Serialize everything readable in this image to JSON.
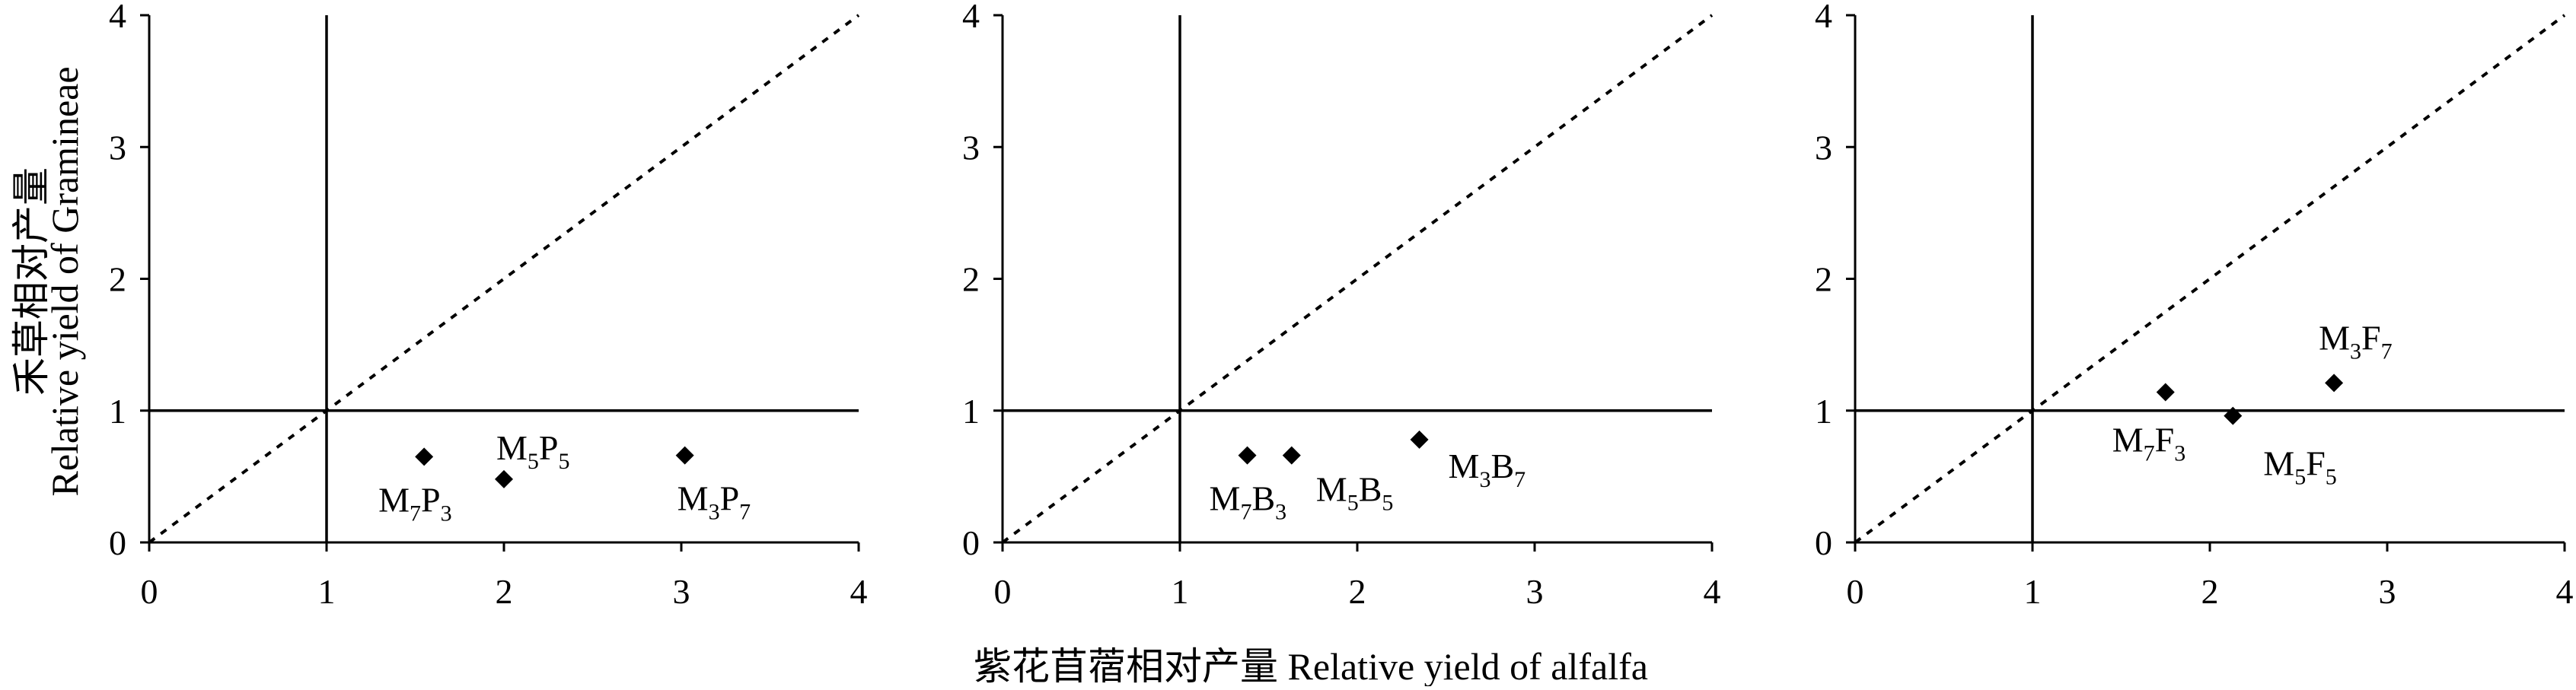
{
  "figure": {
    "x_axis_label": "紫花苜蓿相对产量 Relative yield of alfalfa",
    "y_axis_label_cn": "禾草相对产量",
    "y_axis_label_en": "Relative yield of Gramineae"
  },
  "chart_data": [
    {
      "type": "scatter",
      "title": "",
      "xlim": [
        0,
        4
      ],
      "ylim": [
        0,
        4
      ],
      "xticks": [
        "0",
        "1",
        "2",
        "3",
        "4"
      ],
      "yticks": [
        "0",
        "1",
        "2",
        "3",
        "4"
      ],
      "reference_lines": {
        "vertical_x": 1,
        "horizontal_y": 1,
        "diagonal": "y = x (dotted)"
      },
      "marker": "diamond",
      "marker_color": "#000000",
      "points": [
        {
          "x": 1.55,
          "y": 0.65,
          "label_main": [
            "M",
            "P"
          ],
          "label_sub": [
            "7",
            "3"
          ]
        },
        {
          "x": 2.0,
          "y": 0.48,
          "label_main": [
            "M",
            "P"
          ],
          "label_sub": [
            "5",
            "5"
          ]
        },
        {
          "x": 3.02,
          "y": 0.66,
          "label_main": [
            "M",
            "P"
          ],
          "label_sub": [
            "3",
            "7"
          ]
        }
      ]
    },
    {
      "type": "scatter",
      "title": "",
      "xlim": [
        0,
        4
      ],
      "ylim": [
        0,
        4
      ],
      "xticks": [
        "0",
        "1",
        "2",
        "3",
        "4"
      ],
      "yticks": [
        "0",
        "1",
        "2",
        "3",
        "4"
      ],
      "reference_lines": {
        "vertical_x": 1,
        "horizontal_y": 1,
        "diagonal": "y = x (dotted)"
      },
      "marker": "diamond",
      "marker_color": "#000000",
      "points": [
        {
          "x": 1.38,
          "y": 0.66,
          "label_main": [
            "M",
            "B"
          ],
          "label_sub": [
            "7",
            "3"
          ]
        },
        {
          "x": 1.63,
          "y": 0.66,
          "label_main": [
            "M",
            "B"
          ],
          "label_sub": [
            "5",
            "5"
          ]
        },
        {
          "x": 2.35,
          "y": 0.78,
          "label_main": [
            "M",
            "B"
          ],
          "label_sub": [
            "3",
            "7"
          ]
        }
      ]
    },
    {
      "type": "scatter",
      "title": "",
      "xlim": [
        0,
        4
      ],
      "ylim": [
        0,
        4
      ],
      "xticks": [
        "0",
        "1",
        "2",
        "3",
        "4"
      ],
      "yticks": [
        "0",
        "1",
        "2",
        "3",
        "4"
      ],
      "reference_lines": {
        "vertical_x": 1,
        "horizontal_y": 1,
        "diagonal": "y = x (dotted)"
      },
      "marker": "diamond",
      "marker_color": "#000000",
      "points": [
        {
          "x": 1.75,
          "y": 1.14,
          "label_main": [
            "M",
            "F"
          ],
          "label_sub": [
            "7",
            "3"
          ]
        },
        {
          "x": 2.13,
          "y": 0.96,
          "label_main": [
            "M",
            "F"
          ],
          "label_sub": [
            "5",
            "5"
          ]
        },
        {
          "x": 2.7,
          "y": 1.21,
          "label_main": [
            "M",
            "F"
          ],
          "label_sub": [
            "3",
            "7"
          ]
        }
      ]
    }
  ]
}
